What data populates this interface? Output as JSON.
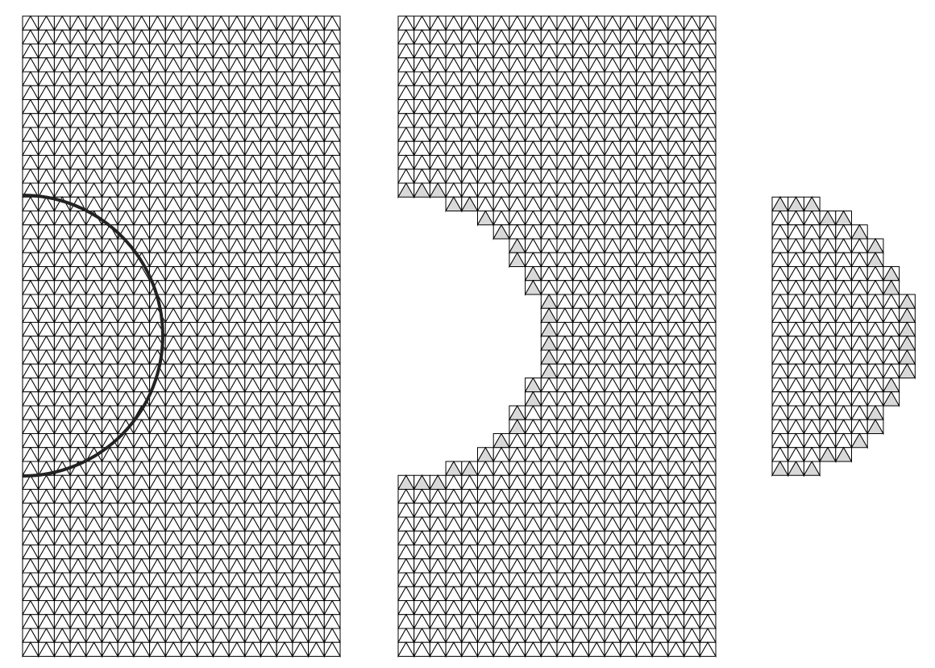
{
  "figure": {
    "panels": [
      {
        "name": "full-mesh",
        "description_shown": false
      },
      {
        "name": "outer-mesh",
        "description_shown": false
      },
      {
        "name": "inner-mesh",
        "description_shown": false
      }
    ]
  },
  "colors": {
    "background": "#ffffff",
    "mesh_stroke": "#000000",
    "boundary_fill": "#d9d9d9",
    "interface_curve": "#222222"
  }
}
